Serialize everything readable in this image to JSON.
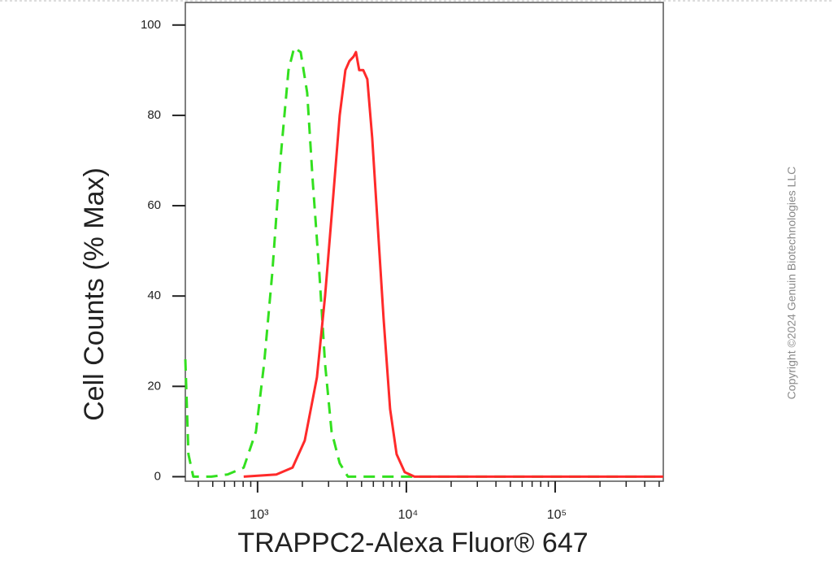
{
  "chart_data": {
    "type": "line",
    "xlabel": "TRAPPC2-Alexa Fluor® 647",
    "ylabel": "Cell Counts (% Max)",
    "copyright": "Copyright ©2024 Genuin Biotechnologies LLC",
    "xscale": "log",
    "xlim": [
      327,
      533000
    ],
    "ylim": [
      -1,
      105
    ],
    "xticks": [
      {
        "value": 1000,
        "label": "10³"
      },
      {
        "value": 10000,
        "label": "10⁴"
      },
      {
        "value": 100000,
        "label": "10⁵"
      }
    ],
    "minor_xticks": [
      400,
      500,
      600,
      700,
      800,
      900,
      2000,
      3000,
      4000,
      5000,
      6000,
      7000,
      8000,
      9000,
      20000,
      30000,
      40000,
      50000,
      60000,
      70000,
      80000,
      90000,
      200000,
      300000,
      400000,
      500000
    ],
    "yticks": [
      0,
      20,
      40,
      60,
      80,
      100
    ],
    "series": [
      {
        "color": "#33e01f",
        "dash": true,
        "x": [
          327,
          343,
          370,
          489,
          628,
          807,
          975,
          1106,
          1254,
          1422,
          1613,
          1762,
          1948,
          2155,
          2353,
          2603,
          2843,
          3141,
          3565,
          4045,
          5333,
          10000,
          35200,
          123900,
          533000
        ],
        "values": [
          26,
          5,
          0,
          0,
          0.5,
          2,
          10,
          25,
          45,
          70,
          90,
          95,
          94,
          85,
          65,
          45,
          25,
          10,
          3,
          0,
          0,
          0,
          0,
          0,
          0
        ]
      },
      {
        "color": "#ff2a2a",
        "dash": false,
        "x": [
          807,
          1336,
          1718,
          2074,
          2505,
          2843,
          3222,
          3565,
          3893,
          4141,
          4416,
          4581,
          4821,
          5131,
          5466,
          5895,
          6436,
          7031,
          7776,
          8596,
          9753,
          11350,
          35200,
          123900,
          533000
        ],
        "values": [
          0,
          0.5,
          2,
          8,
          22,
          40,
          62,
          80,
          90,
          92,
          93,
          94,
          90,
          90,
          88,
          75,
          55,
          35,
          15,
          5,
          1,
          0,
          0,
          0,
          0
        ]
      }
    ]
  }
}
